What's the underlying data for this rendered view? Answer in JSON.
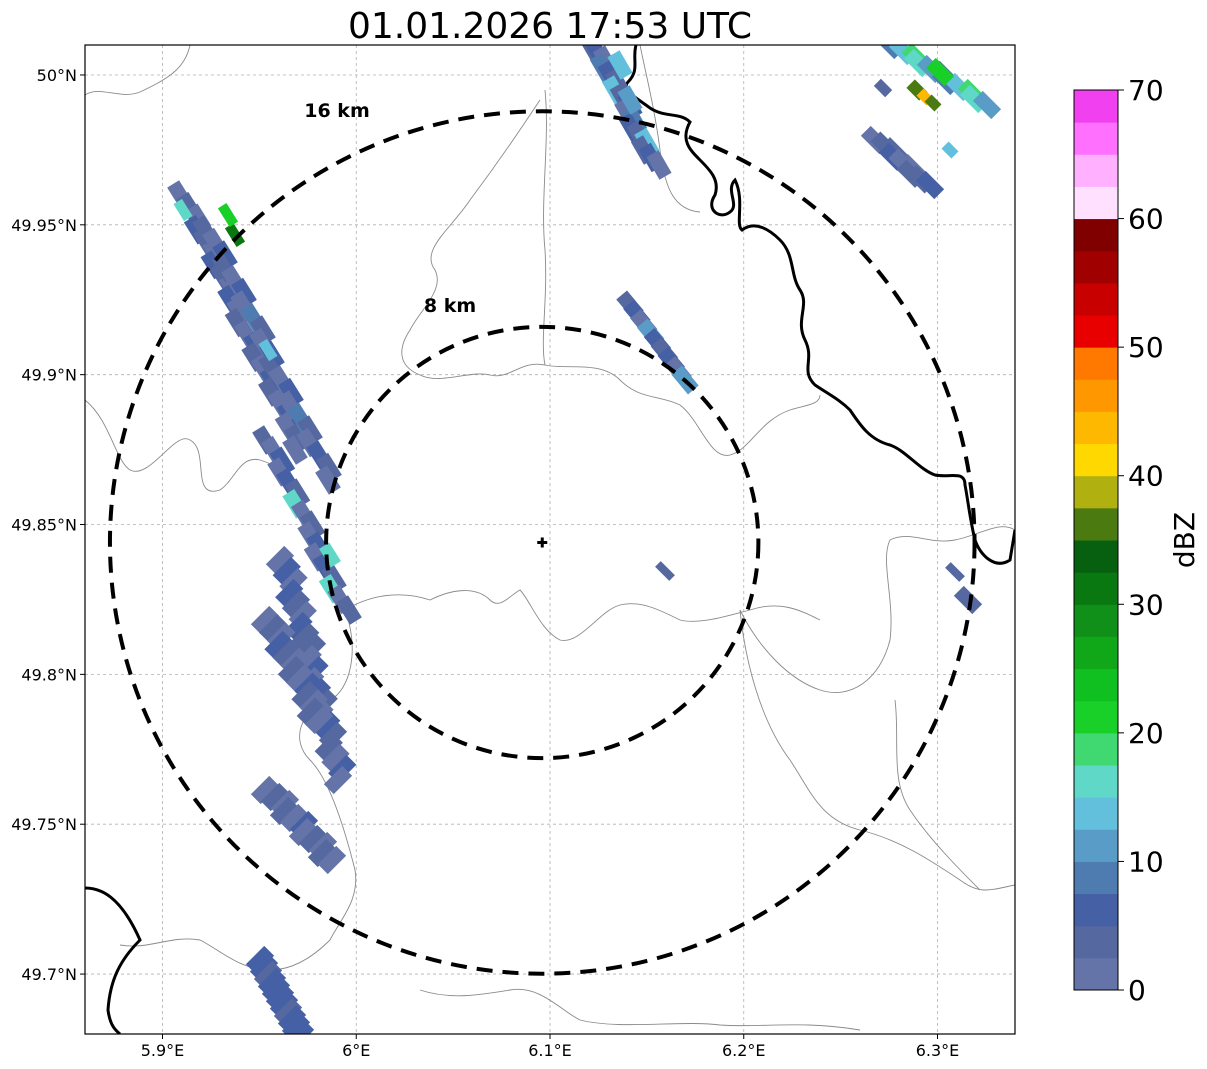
{
  "title": "01.01.2026 17:53 UTC",
  "colorbar": {
    "label": "dBZ",
    "min": 0,
    "max": 70,
    "tick_labels": [
      "0",
      "10",
      "20",
      "30",
      "40",
      "50",
      "60",
      "70"
    ],
    "tick_values": [
      0,
      10,
      20,
      30,
      40,
      50,
      60,
      70
    ],
    "step": 2.5,
    "colors": [
      "#6574a8",
      "#5568a0",
      "#4560a4",
      "#4f7cb0",
      "#5a9cc8",
      "#62c0dc",
      "#60d8c8",
      "#40d870",
      "#18d028",
      "#10c020",
      "#10a818",
      "#109018",
      "#0a7810",
      "#066010",
      "#4a7a10",
      "#b0b010",
      "#ffd800",
      "#ffb800",
      "#ff9800",
      "#ff7800",
      "#e80000",
      "#c80000",
      "#a00000",
      "#800000",
      "#ffe0ff",
      "#ffb0ff",
      "#ff70ff",
      "#f040f0"
    ]
  },
  "axes": {
    "x_ticks": [
      {
        "value": 5.9,
        "label": "5.9°E"
      },
      {
        "value": 6.0,
        "label": "6°E"
      },
      {
        "value": 6.1,
        "label": "6.1°E"
      },
      {
        "value": 6.2,
        "label": "6.2°E"
      },
      {
        "value": 6.3,
        "label": "6.3°E"
      }
    ],
    "y_ticks": [
      {
        "value": 50.0,
        "label": "50°N"
      },
      {
        "value": 49.95,
        "label": "49.95°N"
      },
      {
        "value": 49.9,
        "label": "49.9°N"
      },
      {
        "value": 49.85,
        "label": "49.85°N"
      },
      {
        "value": 49.8,
        "label": "49.8°N"
      },
      {
        "value": 49.75,
        "label": "49.75°N"
      },
      {
        "value": 49.7,
        "label": "49.7°N"
      }
    ],
    "lon_range": [
      5.86,
      6.34
    ],
    "lat_range": [
      49.68,
      50.01
    ]
  },
  "radar": {
    "center": {
      "lon": 6.096,
      "lat": 49.844
    },
    "rings": [
      {
        "label": "8 km",
        "radius_km": 8
      },
      {
        "label": "16 km",
        "radius_km": 16
      }
    ]
  },
  "echo_clusters": [
    {
      "name": "western-line",
      "peak_dbz": 30
    },
    {
      "name": "north-band",
      "peak_dbz": 15
    },
    {
      "name": "north-east-cell",
      "peak_dbz": 40
    },
    {
      "name": "central-cell",
      "peak_dbz": 15
    },
    {
      "name": "east-fragment",
      "peak_dbz": 5
    },
    {
      "name": "small-center-fragment",
      "peak_dbz": 5
    }
  ]
}
